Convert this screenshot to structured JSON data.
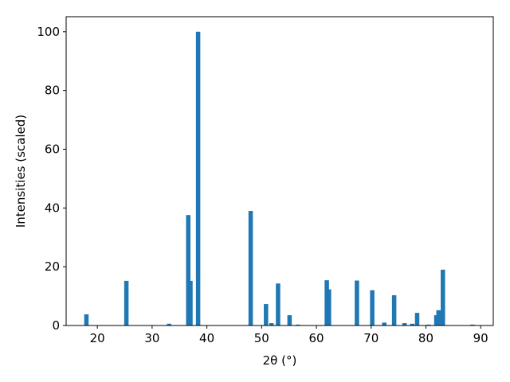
{
  "chart_data": {
    "type": "bar",
    "xlabel": "2θ (°)",
    "ylabel": "Intensities (scaled)",
    "x": [
      18.0,
      25.3,
      33.1,
      36.6,
      37.0,
      38.4,
      48.0,
      50.8,
      51.8,
      53.0,
      55.1,
      56.6,
      61.9,
      62.3,
      67.4,
      70.2,
      72.4,
      74.2,
      76.1,
      77.5,
      78.4,
      80.5,
      81.9,
      82.3,
      83.1,
      88.5
    ],
    "values": [
      3.8,
      15.2,
      0.6,
      37.6,
      15.2,
      100,
      39,
      7.3,
      0.8,
      14.3,
      3.5,
      0.3,
      15.4,
      12.3,
      15.3,
      12,
      1,
      10.3,
      0.8,
      0.6,
      4.3,
      0.3,
      3.5,
      5.2,
      19,
      0.3
    ],
    "bar_width": 0.8,
    "color": "#1f77b4",
    "xlim": [
      14.3,
      92.3
    ],
    "ylim": [
      0,
      105.1
    ],
    "xticks": [
      20,
      30,
      40,
      50,
      60,
      70,
      80,
      90
    ],
    "yticks": [
      0,
      20,
      40,
      60,
      80,
      100
    ]
  }
}
